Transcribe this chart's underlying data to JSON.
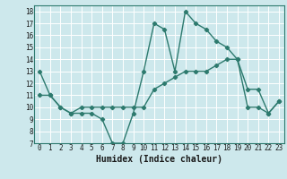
{
  "x": [
    0,
    1,
    2,
    3,
    4,
    5,
    6,
    7,
    8,
    9,
    10,
    11,
    12,
    13,
    14,
    15,
    16,
    17,
    18,
    19,
    20,
    21,
    22,
    23
  ],
  "line1": [
    13,
    11,
    10,
    9.5,
    9.5,
    9.5,
    9.0,
    7.0,
    7.0,
    9.5,
    13,
    17,
    16.5,
    13,
    18,
    17,
    16.5,
    15.5,
    15.0,
    14.0,
    11.5,
    11.5,
    9.5,
    10.5
  ],
  "line2": [
    11,
    11,
    10,
    9.5,
    10,
    10,
    10,
    10,
    10,
    10,
    10,
    11.5,
    12,
    12.5,
    13,
    13,
    13,
    13.5,
    14,
    14,
    10,
    10,
    9.5,
    10.5
  ],
  "color": "#2d7a6e",
  "bg_color": "#cde8ec",
  "grid_color": "#ffffff",
  "xlabel": "Humidex (Indice chaleur)",
  "ylim": [
    7,
    18.5
  ],
  "xlim": [
    -0.5,
    23.5
  ],
  "yticks": [
    7,
    8,
    9,
    10,
    11,
    12,
    13,
    14,
    15,
    16,
    17,
    18
  ],
  "xticks": [
    0,
    1,
    2,
    3,
    4,
    5,
    6,
    7,
    8,
    9,
    10,
    11,
    12,
    13,
    14,
    15,
    16,
    17,
    18,
    19,
    20,
    21,
    22,
    23
  ],
  "marker": "D",
  "markersize": 2.2,
  "linewidth": 1.0,
  "xlabel_fontsize": 7,
  "tick_fontsize": 5.5
}
